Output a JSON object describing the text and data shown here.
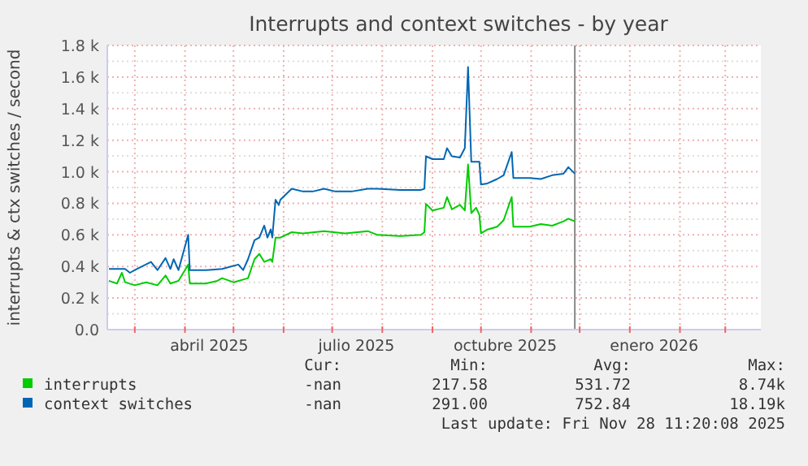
{
  "chart_data": {
    "type": "line",
    "title": "Interrupts and context switches - by year",
    "ylabel": "interrupts & ctx switches / second",
    "xlim": [
      "2025-02-12",
      "2026-03-23"
    ],
    "xticks": [
      {
        "value": "2025-03-01",
        "label": null
      },
      {
        "value": "2025-04-01",
        "label": null
      },
      {
        "value": "2025-04-16",
        "label": "abril 2025"
      },
      {
        "value": "2025-05-01",
        "label": null
      },
      {
        "value": "2025-06-01",
        "label": null
      },
      {
        "value": "2025-07-01",
        "label": null
      },
      {
        "value": "2025-07-16",
        "label": "julio 2025"
      },
      {
        "value": "2025-08-01",
        "label": null
      },
      {
        "value": "2025-09-01",
        "label": null
      },
      {
        "value": "2025-10-01",
        "label": null
      },
      {
        "value": "2025-10-16",
        "label": "octubre 2025"
      },
      {
        "value": "2025-11-01",
        "label": null
      },
      {
        "value": "2025-12-01",
        "label": null
      },
      {
        "value": "2026-01-01",
        "label": null
      },
      {
        "value": "2026-01-16",
        "label": "enero 2026"
      },
      {
        "value": "2026-02-01",
        "label": null
      },
      {
        "value": "2026-03-01",
        "label": null
      }
    ],
    "ylim": [
      0,
      1800
    ],
    "yticks": [
      {
        "value": 0,
        "label": "0.0"
      },
      {
        "value": 100,
        "label": null
      },
      {
        "value": 200,
        "label": "0.2 k"
      },
      {
        "value": 300,
        "label": null
      },
      {
        "value": 400,
        "label": "0.4 k"
      },
      {
        "value": 500,
        "label": null
      },
      {
        "value": 600,
        "label": "0.6 k"
      },
      {
        "value": 700,
        "label": null
      },
      {
        "value": 800,
        "label": "0.8 k"
      },
      {
        "value": 900,
        "label": null
      },
      {
        "value": 1000,
        "label": "1.0 k"
      },
      {
        "value": 1100,
        "label": null
      },
      {
        "value": 1200,
        "label": "1.2 k"
      },
      {
        "value": 1300,
        "label": null
      },
      {
        "value": 1400,
        "label": "1.4 k"
      },
      {
        "value": 1500,
        "label": null
      },
      {
        "value": 1600,
        "label": "1.6 k"
      },
      {
        "value": 1700,
        "label": null
      },
      {
        "value": 1800,
        "label": "1.8 k"
      }
    ],
    "grid": true,
    "legend": "bottom",
    "line_style": "solid",
    "marker": "none",
    "ref_lines": [
      {
        "axis": "x",
        "value": "2025-11-28",
        "color": "#888888"
      }
    ],
    "series": [
      {
        "name": "interrupts",
        "color": "#00cc00",
        "x": [
          "2025-02-13",
          "2025-02-18",
          "2025-02-21",
          "2025-02-23",
          "2025-03-01",
          "2025-03-08",
          "2025-03-15",
          "2025-03-20",
          "2025-03-23",
          "2025-03-28",
          "2025-04-03",
          "2025-04-04",
          "2025-04-14",
          "2025-04-21",
          "2025-04-24",
          "2025-05-01",
          "2025-05-10",
          "2025-05-14",
          "2025-05-17",
          "2025-05-20",
          "2025-05-24",
          "2025-05-25",
          "2025-05-27",
          "2025-05-30",
          "2025-06-06",
          "2025-06-13",
          "2025-06-26",
          "2025-07-09",
          "2025-07-23",
          "2025-07-29",
          "2025-08-12",
          "2025-08-25",
          "2025-08-27",
          "2025-08-28",
          "2025-09-01",
          "2025-09-08",
          "2025-09-10",
          "2025-09-13",
          "2025-09-18",
          "2025-09-21",
          "2025-09-23",
          "2025-09-25",
          "2025-09-28",
          "2025-09-30",
          "2025-10-01",
          "2025-10-05",
          "2025-10-11",
          "2025-10-15",
          "2025-10-20",
          "2025-10-21",
          "2025-10-31",
          "2025-11-07",
          "2025-11-14",
          "2025-11-21",
          "2025-11-24",
          "2025-11-28"
        ],
        "values": [
          309,
          292,
          360,
          300,
          281,
          300,
          281,
          343,
          292,
          309,
          412,
          292,
          292,
          309,
          326,
          300,
          326,
          446,
          480,
          429,
          446,
          429,
          583,
          583,
          617,
          610,
          624,
          610,
          624,
          600,
          593,
          600,
          617,
          796,
          755,
          772,
          840,
          762,
          790,
          755,
          1046,
          738,
          772,
          727,
          610,
          634,
          652,
          693,
          840,
          652,
          652,
          669,
          658,
          686,
          703,
          686
        ]
      },
      {
        "name": "context switches",
        "color": "#0066b3",
        "x": [
          "2025-02-13",
          "2025-02-23",
          "2025-02-26",
          "2025-03-01",
          "2025-03-11",
          "2025-03-15",
          "2025-03-20",
          "2025-03-23",
          "2025-03-25",
          "2025-03-28",
          "2025-04-03",
          "2025-04-04",
          "2025-04-14",
          "2025-04-24",
          "2025-05-04",
          "2025-05-07",
          "2025-05-10",
          "2025-05-14",
          "2025-05-17",
          "2025-05-20",
          "2025-05-22",
          "2025-05-24",
          "2025-05-25",
          "2025-05-27",
          "2025-05-29",
          "2025-05-30",
          "2025-06-06",
          "2025-06-13",
          "2025-06-19",
          "2025-06-26",
          "2025-07-03",
          "2025-07-13",
          "2025-07-23",
          "2025-07-29",
          "2025-08-12",
          "2025-08-25",
          "2025-08-27",
          "2025-08-28",
          "2025-09-01",
          "2025-09-08",
          "2025-09-10",
          "2025-09-13",
          "2025-09-18",
          "2025-09-21",
          "2025-09-23",
          "2025-09-25",
          "2025-09-28",
          "2025-09-30",
          "2025-10-01",
          "2025-10-05",
          "2025-10-11",
          "2025-10-15",
          "2025-10-20",
          "2025-10-21",
          "2025-10-31",
          "2025-11-07",
          "2025-11-14",
          "2025-11-21",
          "2025-11-24",
          "2025-11-28"
        ],
        "values": [
          384,
          384,
          360,
          377,
          429,
          377,
          453,
          384,
          446,
          377,
          600,
          377,
          377,
          384,
          412,
          377,
          446,
          566,
          583,
          659,
          583,
          635,
          583,
          823,
          789,
          823,
          892,
          875,
          875,
          892,
          875,
          875,
          892,
          892,
          885,
          885,
          892,
          1098,
          1080,
          1080,
          1149,
          1098,
          1090,
          1149,
          1664,
          1063,
          1063,
          1063,
          919,
          926,
          954,
          978,
          1125,
          961,
          961,
          954,
          978,
          988,
          1029,
          988
        ]
      }
    ],
    "annotations": [
      "Cur:",
      "Min:",
      "Avg:",
      "Max:",
      "-nan",
      "217.58",
      "531.72",
      "8.74k",
      "-nan",
      "291.00",
      "752.84",
      "18.19k",
      "Last update: Fri Nov 28 11:20:08 2025"
    ]
  }
}
